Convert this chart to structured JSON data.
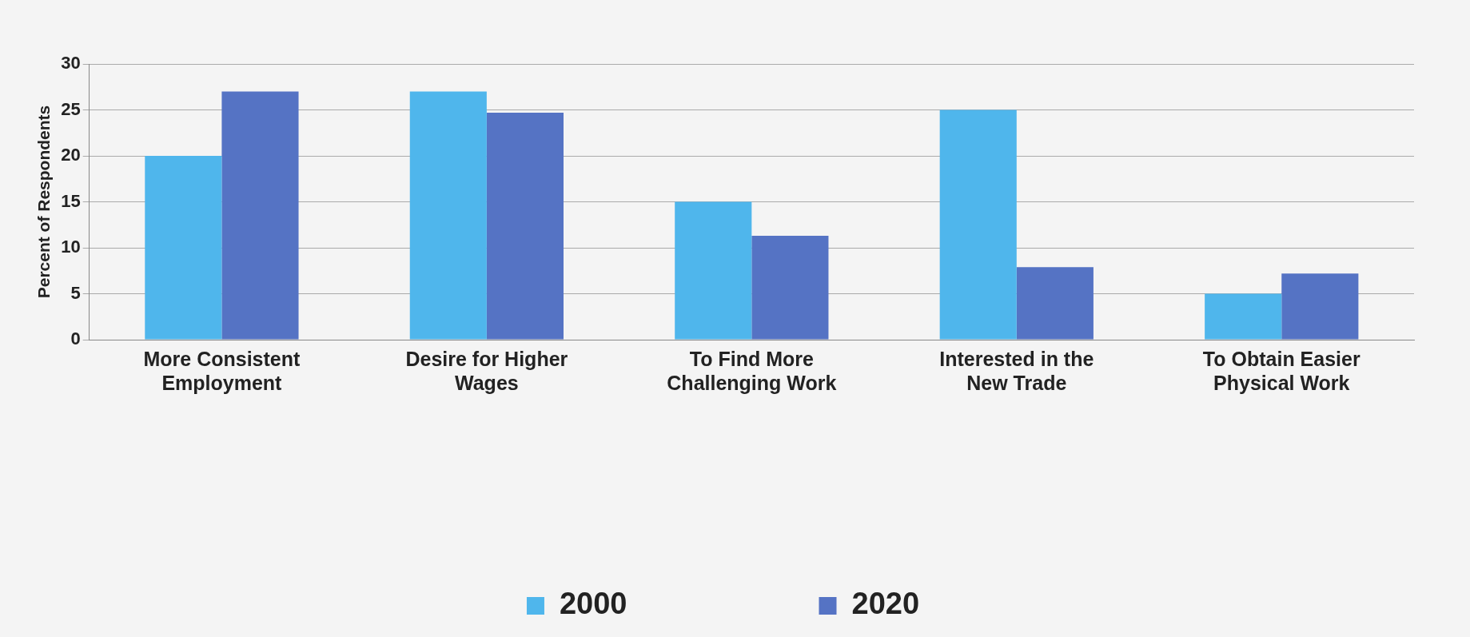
{
  "chart_data": {
    "type": "bar",
    "ylabel": "Percent of Respondents",
    "categories": [
      "More Consistent Employment",
      "Desire for Higher Wages",
      "To Find More Challenging Work",
      "Interested in the New Trade",
      "To Obtain Easier Physical Work"
    ],
    "series": [
      {
        "name": "2000",
        "color": "#4fb6ec",
        "values": [
          20,
          27,
          15,
          25,
          5
        ]
      },
      {
        "name": "2020",
        "color": "#5573c4",
        "values": [
          27,
          24.7,
          11.3,
          7.9,
          7.2
        ]
      }
    ],
    "ylim": [
      0,
      30
    ],
    "yticks": [
      0,
      5,
      10,
      15,
      20,
      25,
      30
    ],
    "grid": "y",
    "legend": "bottom"
  }
}
